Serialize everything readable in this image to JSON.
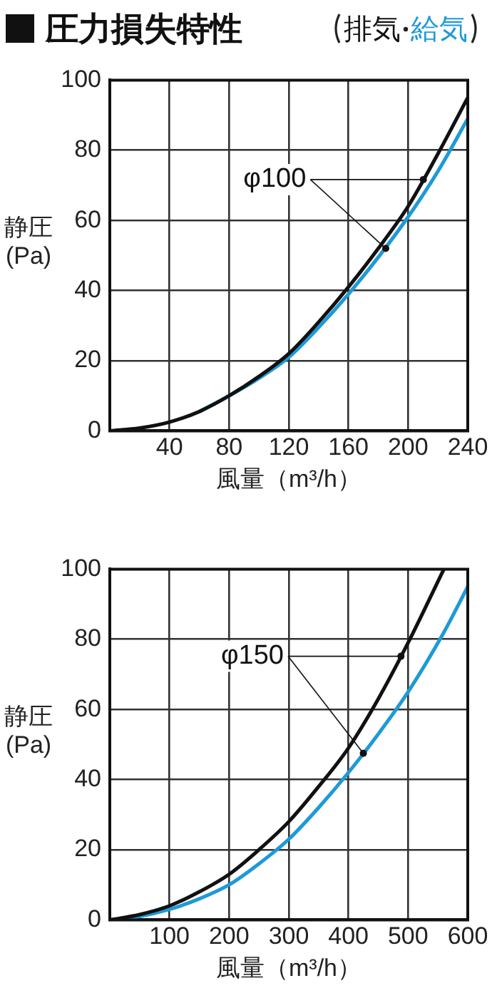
{
  "chart_data": [
    {
      "type": "line",
      "title": "圧力損失特性",
      "xlabel": "風量（m³/h）",
      "ylabel": "静圧(Pa)",
      "legend": "top right",
      "x": [
        0,
        20,
        40,
        60,
        80,
        100,
        120,
        140,
        160,
        180,
        200,
        220,
        240
      ],
      "series": [
        {
          "name": "排気",
          "color": "#111111",
          "values": [
            0,
            0.8,
            2.5,
            5.5,
            10,
            15.5,
            22,
            31,
            41,
            52,
            64,
            79,
            95
          ]
        },
        {
          "name": "給気",
          "color": "#1e9ad6",
          "values": [
            null,
            null,
            null,
            5.5,
            10,
            15,
            21,
            29.5,
            39,
            49.5,
            61,
            74,
            89
          ]
        }
      ],
      "xlim": [
        0,
        240
      ],
      "xticks": [
        {
          "value": 0,
          "label": null
        },
        40,
        80,
        120,
        160,
        200,
        240
      ],
      "ylim": [
        0,
        100
      ],
      "yticks": [
        0,
        20,
        40,
        60,
        80,
        100
      ],
      "grid": true,
      "marker": "none",
      "line_style": "solid",
      "annotations": [
        {
          "text": "φ100",
          "x": 185,
          "y": 52
        }
      ]
    },
    {
      "type": "line",
      "xlabel": "風量（m³/h）",
      "ylabel": "静圧(Pa)",
      "x": [
        0,
        50,
        100,
        150,
        200,
        250,
        300,
        350,
        400,
        450,
        500,
        560,
        600
      ],
      "series": [
        {
          "color": "#111111",
          "values": [
            0,
            1.5,
            4,
            8,
            13,
            20,
            28,
            38,
            49,
            63,
            79,
            100,
            null
          ]
        },
        {
          "color": "#1e9ad6",
          "values": [
            0,
            1,
            3,
            6,
            10,
            16,
            23,
            32,
            42,
            53,
            65,
            82,
            95
          ]
        }
      ],
      "xlim": [
        0,
        600
      ],
      "xticks": [
        {
          "value": 0,
          "label": null
        },
        100,
        200,
        300,
        400,
        500,
        600
      ],
      "ylim": [
        0,
        100
      ],
      "yticks": [
        0,
        20,
        40,
        60,
        80,
        100
      ],
      "grid": true,
      "marker": "none",
      "line_style": "solid",
      "annotations": [
        {
          "text": "φ150",
          "x": 425,
          "y": 47.5
        }
      ]
    }
  ]
}
